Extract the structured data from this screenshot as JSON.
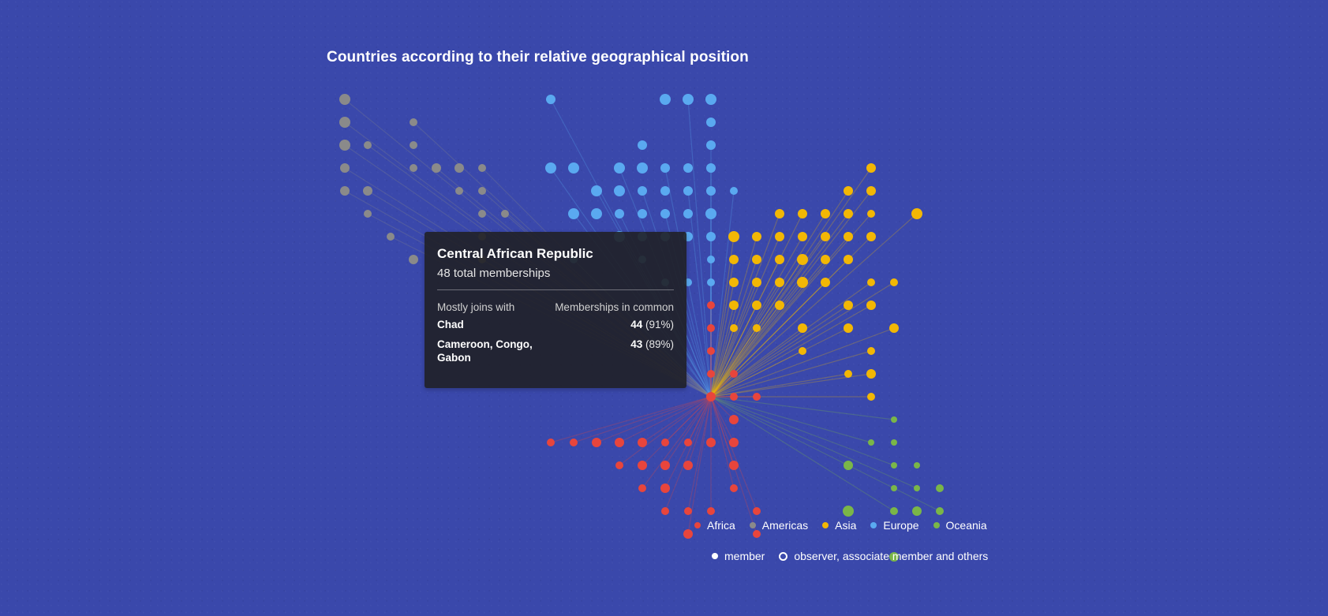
{
  "title": "Countries according to their relative geographical position",
  "tooltip": {
    "country": "Central African Republic",
    "total": "48 total memberships",
    "col_left": "Mostly joins with",
    "col_right": "Memberships in common",
    "rows": [
      {
        "name": "Chad",
        "count": "44",
        "pct": "(91%)"
      },
      {
        "name": "Cameroon, Congo, Gabon",
        "count": "43",
        "pct": "(89%)"
      }
    ]
  },
  "legend": {
    "regions": [
      {
        "name": "Africa",
        "color": "#e8453c"
      },
      {
        "name": "Americas",
        "color": "#8a8a8a"
      },
      {
        "name": "Asia",
        "color": "#f2b705"
      },
      {
        "name": "Europe",
        "color": "#5aa9f0"
      },
      {
        "name": "Oceania",
        "color": "#7ab648"
      }
    ],
    "member": "member",
    "observer": "observer, associate member and others"
  },
  "colors": {
    "background": "#3a48ab",
    "tooltip_bg": "#202026"
  },
  "chart_data": {
    "type": "scatter",
    "title": "Countries according to their relative geographical position",
    "focus_country": "Central African Republic",
    "focus_region": "Africa",
    "grid": "countries placed on a grid by relative geographical position; lines connect the focused country to countries it shares memberships with",
    "regions": [
      "Africa",
      "Americas",
      "Asia",
      "Europe",
      "Oceania"
    ]
  }
}
